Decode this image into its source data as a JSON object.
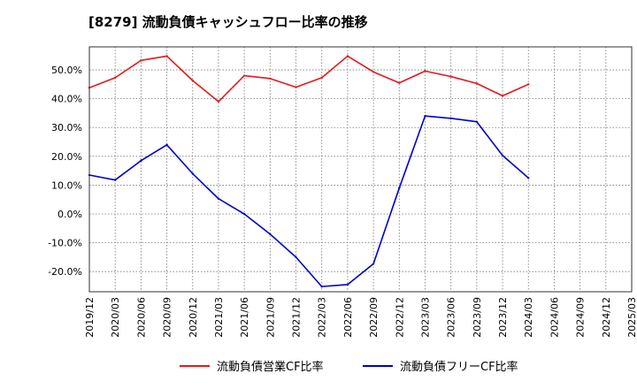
{
  "chart_data": {
    "type": "line",
    "title": "[8279]  流動負債キャッシュフロー比率の推移",
    "x": [
      "2019/12",
      "2020/03",
      "2020/06",
      "2020/09",
      "2020/12",
      "2021/03",
      "2021/06",
      "2021/09",
      "2021/12",
      "2022/03",
      "2022/06",
      "2022/09",
      "2022/12",
      "2023/03",
      "2023/06",
      "2023/09",
      "2023/12",
      "2024/03",
      "2024/06",
      "2024/09",
      "2024/12",
      "2025/03"
    ],
    "xlabel": "",
    "ylabel": "",
    "ylim": [
      -27,
      58
    ],
    "yticks": [
      -20,
      -10,
      0,
      10,
      20,
      30,
      40,
      50
    ],
    "ytick_labels": [
      "-20.0%",
      "-10.0%",
      "0.0%",
      "10.0%",
      "20.0%",
      "30.0%",
      "40.0%",
      "50.0%"
    ],
    "grid": true,
    "legend_position": "bottom",
    "series": [
      {
        "name": "流動負債営業CF比率",
        "color": "#e31a1c",
        "values": [
          43.8,
          47.3,
          53.3,
          54.8,
          46.3,
          39.0,
          48.0,
          47.0,
          44.0,
          47.3,
          54.8,
          49.3,
          45.5,
          49.6,
          47.7,
          45.3,
          41.0,
          45.0,
          null,
          null,
          null,
          null
        ]
      },
      {
        "name": "流動負債フリーCF比率",
        "color": "#0000cc",
        "values": [
          13.5,
          11.8,
          18.5,
          24.0,
          14.0,
          5.3,
          0.0,
          -7.0,
          -15.0,
          -25.2,
          -24.5,
          -17.3,
          9.0,
          34.0,
          33.2,
          32.0,
          20.3,
          12.5,
          null,
          null,
          null,
          null
        ]
      }
    ]
  }
}
